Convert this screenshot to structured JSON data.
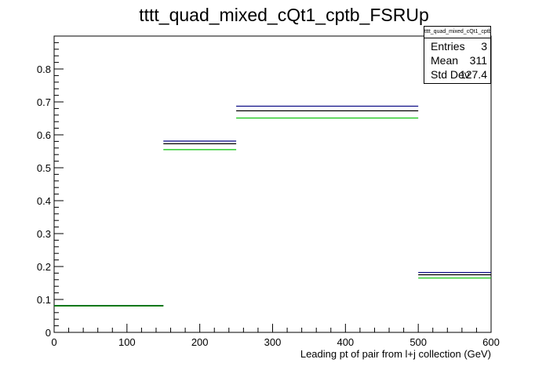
{
  "chart_data": {
    "type": "histogram",
    "title": "tttt_quad_mixed_cQt1_cptb_FSRUp",
    "xlabel": "Leading pt of pair from l+j collection (GeV)",
    "ylabel": "",
    "xlim": [
      0,
      600
    ],
    "ylim": [
      0,
      0.9
    ],
    "x_ticks": [
      "0",
      "100",
      "200",
      "300",
      "400",
      "500",
      "600"
    ],
    "y_ticks": [
      "0",
      "0.1",
      "0.2",
      "0.3",
      "0.4",
      "0.5",
      "0.6",
      "0.7",
      "0.8"
    ],
    "bins": [
      {
        "low": 0,
        "high": 150
      },
      {
        "low": 150,
        "high": 250
      },
      {
        "low": 250,
        "high": 500
      },
      {
        "low": 500,
        "high": 600
      }
    ],
    "series": [
      {
        "color": "#000080",
        "values": [
          0.082,
          0.581,
          0.687,
          0.182
        ]
      },
      {
        "color": "#000000",
        "values": [
          0.08,
          0.573,
          0.673,
          0.175
        ]
      },
      {
        "color": "#00c000",
        "values": [
          0.081,
          0.555,
          0.651,
          0.165
        ]
      }
    ],
    "stats": {
      "title": "tttt_quad_mixed_cQt1_cptb_FSRUp",
      "entries_label": "Entries",
      "entries": "3",
      "mean_label": "Mean",
      "mean": "311",
      "stddev_label": "Std Dev",
      "stddev": "127.4"
    },
    "grid": false,
    "legend": "none"
  }
}
